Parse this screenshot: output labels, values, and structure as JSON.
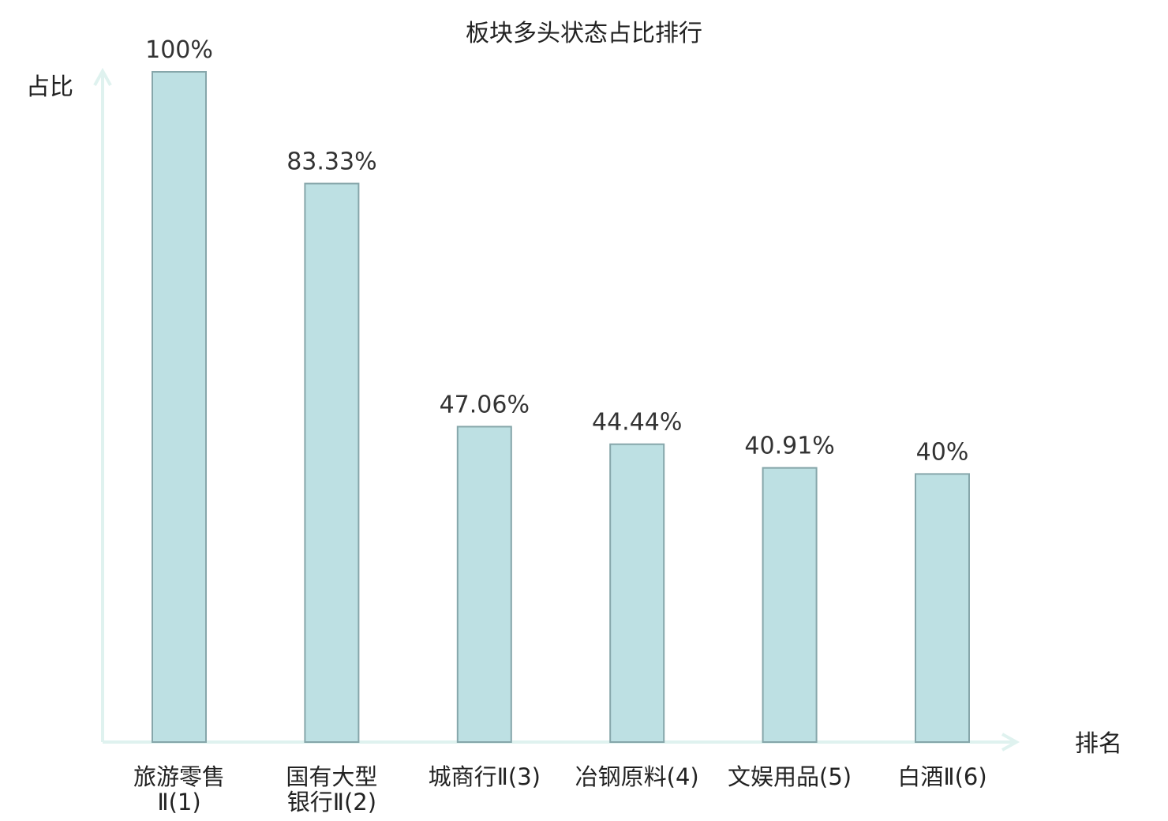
{
  "chart_data": {
    "type": "bar",
    "title": "板块多头状态占比排行",
    "ylabel": "占比",
    "xlabel": "排名",
    "ylim": [
      0,
      100
    ],
    "grid": false,
    "categories": [
      {
        "lines": [
          "旅游零售",
          "Ⅱ(1)"
        ],
        "highlight": false
      },
      {
        "lines": [
          "国有大型",
          "银行Ⅱ(2)"
        ],
        "highlight": false
      },
      {
        "lines": [
          "城商行Ⅱ(3)"
        ],
        "highlight": false
      },
      {
        "lines": [
          "冶钢原料(4)"
        ],
        "highlight": false
      },
      {
        "lines": [
          "文娱用品(5)"
        ],
        "highlight": false
      },
      {
        "lines": [
          "白酒Ⅱ(6)"
        ],
        "highlight": true
      }
    ],
    "values": [
      100,
      83.33,
      47.06,
      44.44,
      40.91,
      40
    ],
    "value_labels": [
      "100%",
      "83.33%",
      "47.06%",
      "44.44%",
      "40.91%",
      "40%"
    ],
    "colors": {
      "bar_fill": "#bde0e3",
      "bar_stroke": "#86a6aa",
      "axis": "#dff2ef",
      "highlight_text": "#e00000"
    }
  }
}
